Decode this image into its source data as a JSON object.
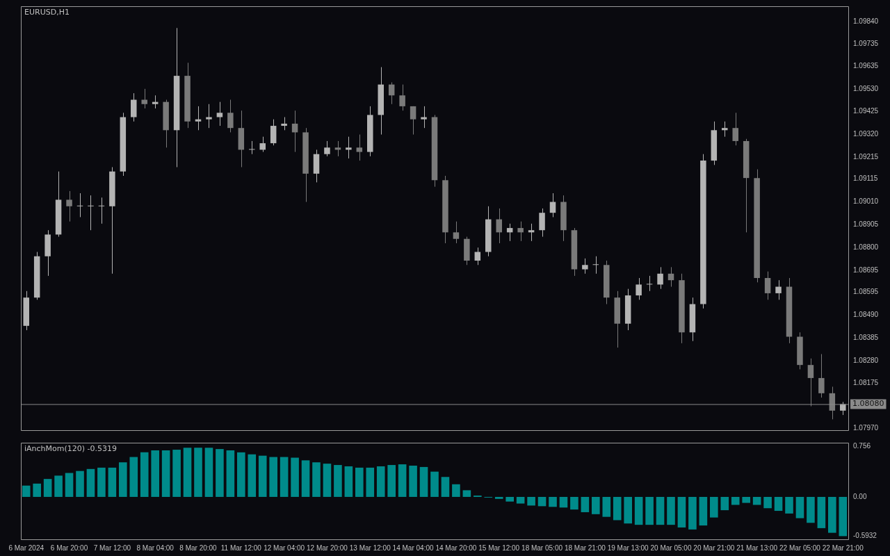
{
  "chart_data": [
    {
      "type": "candlestick",
      "title": "EURUSD,H1",
      "tick_labels": "y",
      "colors": [
        "#b4b4b4",
        "#b4b4b4",
        "#b4b4b4",
        "#b4b4b4",
        "#7a7a7a",
        "#b4b4b4",
        "#b4b4b4",
        "#b4b4b4",
        "#b4b4b4",
        "#b4b4b4",
        "#b4b4b4",
        "#7a7a7a",
        "#b4b4b4",
        "#7a7a7a",
        "#b4b4b4",
        "#7a7a7a",
        "#b4b4b4",
        "#b4b4b4",
        "#b4b4b4",
        "#7a7a7a",
        "#7a7a7a",
        "#b4b4b4",
        "#b4b4b4",
        "#b4b4b4",
        "#b4b4b4",
        "#7a7a7a",
        "#7a7a7a",
        "#b4b4b4",
        "#b4b4b4",
        "#7a7a7a",
        "#b4b4b4",
        "#7a7a7a",
        "#b4b4b4",
        "#b4b4b4",
        "#7a7a7a",
        "#7a7a7a",
        "#7a7a7a",
        "#b4b4b4",
        "#7a7a7a",
        "#7a7a7a",
        "#7a7a7a",
        "#7a7a7a",
        "#b4b4b4",
        "#b4b4b4",
        "#7a7a7a",
        "#b4b4b4",
        "#7a7a7a",
        "#b4b4b4",
        "#b4b4b4",
        "#b4b4b4",
        "#7a7a7a",
        "#7a7a7a",
        "#b4b4b4",
        "#b4b4b4",
        "#7a7a7a",
        "#7a7a7a",
        "#b4b4b4",
        "#b4b4b4",
        "#b4b4b4",
        "#b4b4b4",
        "#7a7a7a",
        "#7a7a7a",
        "#b4b4b4",
        "#b4b4b4",
        "#b4b4b4",
        "#b4b4b4",
        "#7a7a7a",
        "#7a7a7a",
        "#7a7a7a",
        "#7a7a7a",
        "#b4b4b4",
        "#7a7a7a",
        "#7a7a7a",
        "#7a7a7a",
        "#7a7a7a",
        "#7a7a7a",
        "#b4b4b4"
      ],
      "categories": [
        null,
        null,
        null,
        null,
        null,
        null,
        null,
        null,
        null,
        null,
        null,
        null,
        null,
        null,
        null,
        null,
        null,
        null,
        null,
        null,
        null,
        null,
        null,
        null,
        null,
        null,
        null,
        null,
        null,
        null,
        null,
        null,
        null,
        null,
        null,
        null,
        null,
        null,
        null,
        null,
        null,
        null,
        null,
        null,
        null,
        null,
        null,
        null,
        null,
        null,
        null,
        null,
        null,
        null,
        null,
        null,
        null,
        null,
        null,
        null,
        null,
        null,
        null,
        null,
        null,
        null,
        null,
        null,
        null,
        null,
        null,
        null,
        null,
        null,
        null,
        null,
        null
      ],
      "ohlc": [
        [
          1.0844,
          1.086,
          1.0842,
          1.0857
        ],
        [
          1.0857,
          1.0878,
          1.0856,
          1.0876
        ],
        [
          1.0876,
          1.0888,
          1.0867,
          1.0886
        ],
        [
          1.0886,
          1.0915,
          1.0885,
          1.0902
        ],
        [
          1.0902,
          1.0906,
          1.0892,
          1.0899
        ],
        [
          1.0899,
          1.0905,
          1.0894,
          1.0899
        ],
        [
          1.0899,
          1.0904,
          1.0888,
          1.0899
        ],
        [
          1.0899,
          1.0903,
          1.0891,
          1.0899
        ],
        [
          1.0899,
          1.0917,
          1.0868,
          1.0915
        ],
        [
          1.0915,
          1.0942,
          1.0913,
          1.094
        ],
        [
          1.094,
          1.0951,
          1.0938,
          1.0948
        ],
        [
          1.0948,
          1.0953,
          1.0944,
          1.0946
        ],
        [
          1.0946,
          1.095,
          1.0944,
          1.0947
        ],
        [
          1.0947,
          1.0948,
          1.0926,
          1.0934
        ],
        [
          1.0934,
          1.0981,
          1.0917,
          1.0959
        ],
        [
          1.0959,
          1.0965,
          1.0935,
          1.0938
        ],
        [
          1.0938,
          1.0945,
          1.0934,
          1.0939
        ],
        [
          1.0939,
          1.0946,
          1.0935,
          1.094
        ],
        [
          1.094,
          1.0947,
          1.0936,
          1.0942
        ],
        [
          1.0942,
          1.0948,
          1.0933,
          1.0935
        ],
        [
          1.0935,
          1.0943,
          1.0917,
          1.0925
        ],
        [
          1.0925,
          1.0929,
          1.0923,
          1.0925
        ],
        [
          1.0925,
          1.0931,
          1.0924,
          1.0928
        ],
        [
          1.0928,
          1.0939,
          1.0927,
          1.0936
        ],
        [
          1.0936,
          1.094,
          1.0934,
          1.0937
        ],
        [
          1.0937,
          1.0943,
          1.0924,
          1.0933
        ],
        [
          1.0933,
          1.0935,
          1.0901,
          1.0914
        ],
        [
          1.0914,
          1.0925,
          1.091,
          1.0923
        ],
        [
          1.0923,
          1.0929,
          1.0922,
          1.0926
        ],
        [
          1.0926,
          1.0929,
          1.0922,
          1.0925
        ],
        [
          1.0925,
          1.0931,
          1.0921,
          1.0926
        ],
        [
          1.0926,
          1.0932,
          1.092,
          1.0924
        ],
        [
          1.0924,
          1.0945,
          1.0922,
          1.0941
        ],
        [
          1.0941,
          1.0963,
          1.0932,
          1.0955
        ],
        [
          1.0955,
          1.0956,
          1.0946,
          1.095
        ],
        [
          1.095,
          1.0955,
          1.0943,
          1.0945
        ],
        [
          1.0945,
          1.0945,
          1.0932,
          1.0939
        ],
        [
          1.0939,
          1.0945,
          1.0935,
          1.094
        ],
        [
          1.094,
          1.0941,
          1.0908,
          1.0911
        ],
        [
          1.0911,
          1.0913,
          1.0882,
          1.0887
        ],
        [
          1.0887,
          1.0892,
          1.0882,
          1.0884
        ],
        [
          1.0884,
          1.0885,
          1.0872,
          1.0874
        ],
        [
          1.0874,
          1.088,
          1.0872,
          1.0878
        ],
        [
          1.0878,
          1.0899,
          1.0876,
          1.0893
        ],
        [
          1.0893,
          1.0898,
          1.0882,
          1.0887
        ],
        [
          1.0887,
          1.0891,
          1.0883,
          1.0889
        ],
        [
          1.0889,
          1.0892,
          1.0883,
          1.0887
        ],
        [
          1.0887,
          1.0891,
          1.0883,
          1.0888
        ],
        [
          1.0888,
          1.0898,
          1.0885,
          1.0896
        ],
        [
          1.0896,
          1.0905,
          1.0894,
          1.0901
        ],
        [
          1.0901,
          1.0904,
          1.0883,
          1.0888
        ],
        [
          1.0888,
          1.0889,
          1.0867,
          1.087
        ],
        [
          1.087,
          1.0875,
          1.0868,
          1.0872
        ],
        [
          1.0872,
          1.0876,
          1.0868,
          1.0872
        ],
        [
          1.0872,
          1.0874,
          1.0854,
          1.0857
        ],
        [
          1.0857,
          1.086,
          1.0834,
          1.0845
        ],
        [
          1.0845,
          1.0861,
          1.0842,
          1.0858
        ],
        [
          1.0858,
          1.0866,
          1.0856,
          1.0863
        ],
        [
          1.0863,
          1.0867,
          1.086,
          1.0863
        ],
        [
          1.0863,
          1.0871,
          1.0861,
          1.0868
        ],
        [
          1.0868,
          1.0871,
          1.0862,
          1.0865
        ],
        [
          1.0865,
          1.0868,
          1.0836,
          1.0841
        ],
        [
          1.0841,
          1.0857,
          1.0837,
          1.0854
        ],
        [
          1.0854,
          1.0923,
          1.0852,
          1.092
        ],
        [
          1.092,
          1.0938,
          1.0918,
          1.0934
        ],
        [
          1.0934,
          1.0938,
          1.0931,
          1.0935
        ],
        [
          1.0935,
          1.0942,
          1.0927,
          1.0929
        ],
        [
          1.0929,
          1.093,
          1.0887,
          1.0912
        ],
        [
          1.0912,
          1.0916,
          1.0864,
          1.0866
        ],
        [
          1.0866,
          1.0869,
          1.0856,
          1.0859
        ],
        [
          1.0859,
          1.0865,
          1.0856,
          1.0862
        ],
        [
          1.0862,
          1.0866,
          1.0836,
          1.0839
        ],
        [
          1.0839,
          1.0841,
          1.0824,
          1.0826
        ],
        [
          1.0826,
          1.0829,
          1.0807,
          1.082
        ],
        [
          1.082,
          1.0831,
          1.0811,
          1.0813
        ],
        [
          1.0813,
          1.0816,
          1.0801,
          1.0805
        ],
        [
          1.0805,
          1.0809,
          1.0803,
          1.0808
        ]
      ],
      "ylim": [
        1.0796,
        1.0991
      ],
      "yticks": [
        {
          "value": 1.0984,
          "label": "1.09840"
        },
        {
          "value": 1.09735,
          "label": "1.09735"
        },
        {
          "value": 1.09635,
          "label": "1.09635"
        },
        {
          "value": 1.0953,
          "label": "1.09530"
        },
        {
          "value": 1.09425,
          "label": "1.09425"
        },
        {
          "value": 1.0932,
          "label": "1.09320"
        },
        {
          "value": 1.09215,
          "label": "1.09215"
        },
        {
          "value": 1.09115,
          "label": "1.09115"
        },
        {
          "value": 1.0901,
          "label": "1.09010"
        },
        {
          "value": 1.08905,
          "label": "1.08905"
        },
        {
          "value": 1.088,
          "label": "1.08800"
        },
        {
          "value": 1.08695,
          "label": "1.08695"
        },
        {
          "value": 1.08595,
          "label": "1.08595"
        },
        {
          "value": 1.0849,
          "label": "1.08490"
        },
        {
          "value": 1.08385,
          "label": "1.08385"
        },
        {
          "value": 1.0828,
          "label": "1.08280"
        },
        {
          "value": 1.08175,
          "label": "1.08175"
        },
        {
          "value": 1.0797,
          "label": "1.07970"
        }
      ],
      "ref_lines": [
        {
          "axis": "y",
          "value": 1.0808,
          "label": "1.08080",
          "color": "#8a8a8a"
        }
      ]
    },
    {
      "type": "bar",
      "title": "iAnchMom(120) -0.5319",
      "color": "#008b8b",
      "categories": [
        "6 Mar 2024",
        null,
        null,
        null,
        "6 Mar 20:00",
        null,
        null,
        null,
        "7 Mar 12:00",
        null,
        null,
        null,
        "8 Mar 04:00",
        null,
        null,
        null,
        "8 Mar 20:00",
        null,
        null,
        null,
        "11 Mar 12:00",
        null,
        null,
        null,
        "12 Mar 04:00",
        null,
        null,
        null,
        "12 Mar 20:00",
        null,
        null,
        null,
        "13 Mar 12:00",
        null,
        null,
        null,
        "14 Mar 04:00",
        null,
        null,
        null,
        "14 Mar 20:00",
        null,
        null,
        null,
        "15 Mar 12:00",
        null,
        null,
        null,
        "18 Mar 05:00",
        null,
        null,
        null,
        "18 Mar 21:00",
        null,
        null,
        null,
        "19 Mar 13:00",
        null,
        null,
        null,
        "20 Mar 05:00",
        null,
        null,
        null,
        "20 Mar 21:00",
        null,
        null,
        null,
        "21 Mar 13:00",
        null,
        null,
        null,
        "22 Mar 05:00",
        null,
        null,
        null,
        "22 Mar 21:00"
      ],
      "values": [
        0.17,
        0.2,
        0.27,
        0.32,
        0.36,
        0.39,
        0.42,
        0.44,
        0.44,
        0.52,
        0.6,
        0.67,
        0.7,
        0.7,
        0.71,
        0.74,
        0.74,
        0.74,
        0.72,
        0.7,
        0.67,
        0.64,
        0.62,
        0.6,
        0.6,
        0.59,
        0.55,
        0.52,
        0.5,
        0.48,
        0.46,
        0.44,
        0.44,
        0.46,
        0.48,
        0.49,
        0.47,
        0.45,
        0.38,
        0.3,
        0.19,
        0.1,
        0.02,
        -0.01,
        -0.03,
        -0.07,
        -0.1,
        -0.13,
        -0.14,
        -0.15,
        -0.16,
        -0.19,
        -0.23,
        -0.26,
        -0.3,
        -0.35,
        -0.4,
        -0.42,
        -0.42,
        -0.42,
        -0.42,
        -0.46,
        -0.49,
        -0.43,
        -0.31,
        -0.2,
        -0.12,
        -0.09,
        -0.12,
        -0.17,
        -0.21,
        -0.25,
        -0.32,
        -0.39,
        -0.47,
        -0.54,
        -0.59
      ],
      "ylim": [
        -0.638,
        0.815
      ],
      "yticks": [
        0.756,
        {
          "value": 0,
          "label": "0.00"
        },
        -0.5932
      ]
    }
  ]
}
